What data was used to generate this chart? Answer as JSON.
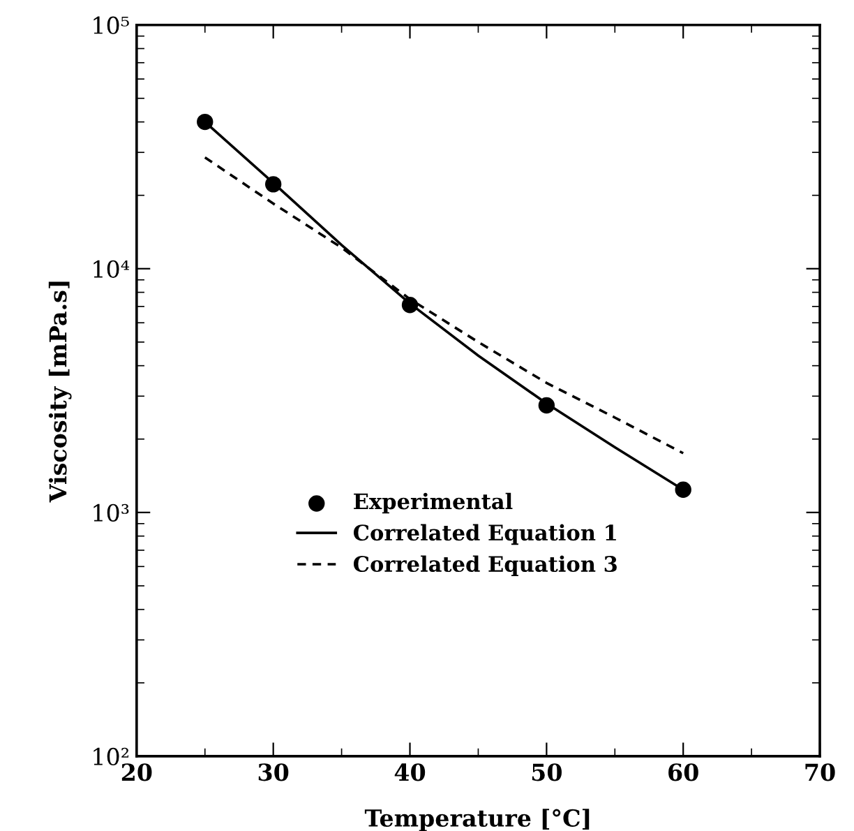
{
  "chart_data": {
    "type": "line",
    "xlabel": "Temperature [°C]",
    "ylabel": "Viscosity [mPa.s]",
    "log": "y",
    "xlim": [
      20,
      70
    ],
    "xticks": [
      20,
      30,
      40,
      50,
      60,
      70
    ],
    "ylim": [
      100,
      100000
    ],
    "yticks": [
      {
        "value": 100,
        "label": "10²"
      },
      {
        "value": 1000,
        "label": "10³"
      },
      {
        "value": 10000,
        "label": "10⁴"
      },
      {
        "value": 100000,
        "label": "10⁵"
      }
    ],
    "grid": false,
    "legend": "lower center",
    "series": [
      {
        "name": "Experimental",
        "type": "scatter",
        "marker": "circle",
        "color": "#000000",
        "x": [
          25,
          30,
          40,
          50,
          60
        ],
        "values": [
          40000,
          22200,
          7100,
          2750,
          1240
        ]
      },
      {
        "name": "Correlated Equation 1",
        "line_style": "solid",
        "marker": "none",
        "color": "#000000",
        "x": [
          25,
          30,
          35,
          40,
          45,
          50,
          55,
          60
        ],
        "values": [
          40000,
          22500,
          12500,
          7200,
          4400,
          2800,
          1850,
          1240
        ]
      },
      {
        "name": "Correlated Equation 3",
        "line_style": "dashed",
        "marker": "none",
        "color": "#000000",
        "x": [
          25,
          30,
          35,
          40,
          45,
          50,
          55,
          60
        ],
        "values": [
          28600,
          18500,
          12200,
          7500,
          5000,
          3400,
          2450,
          1750
        ]
      }
    ]
  }
}
